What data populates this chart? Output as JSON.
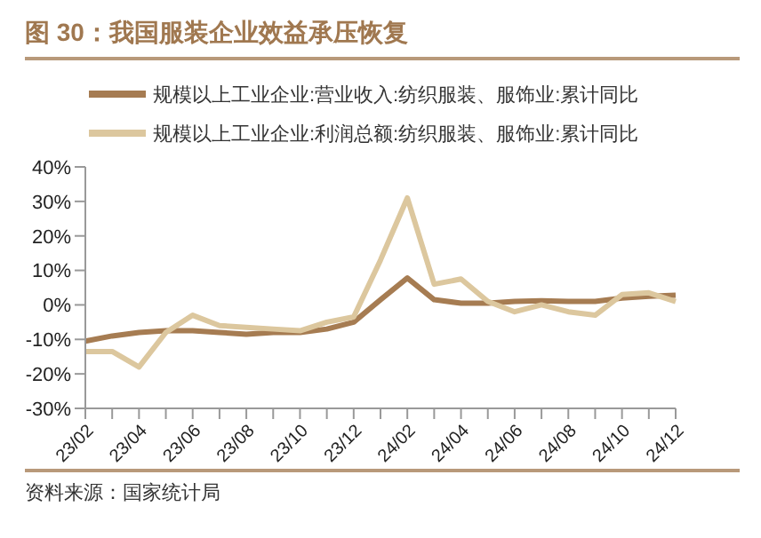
{
  "chart_data": {
    "type": "line",
    "title": "图 30：我国服装企业效益承压恢复",
    "categories": [
      "23/02",
      null,
      "23/04",
      null,
      "23/06",
      null,
      "23/08",
      null,
      "23/10",
      null,
      "23/12",
      null,
      "24/02",
      null,
      "24/04",
      null,
      "24/06",
      null,
      "24/08",
      null,
      "24/10",
      null,
      "24/12"
    ],
    "series": [
      {
        "name": "规模以上工业企业:营业收入:纺织服装、服饰业:累计同比",
        "color": "#a67c52",
        "values": [
          -10.5,
          -9,
          -8,
          -7.5,
          -7.5,
          -8,
          -8.5,
          -8,
          -8,
          -7,
          -5,
          1.5,
          7.8,
          1.5,
          0.5,
          0.5,
          1,
          1.2,
          1,
          1,
          2,
          2.5,
          2.8
        ]
      },
      {
        "name": "规模以上工业企业:利润总额:纺织服装、服饰业:累计同比",
        "color": "#dcc79e",
        "values": [
          -13.5,
          -13.5,
          -18,
          -8,
          -3,
          -6,
          -6.5,
          -7,
          -7.5,
          -5,
          -3.5,
          13,
          31,
          6,
          7.5,
          1,
          -2,
          0,
          -2,
          -3,
          3,
          3.5,
          1
        ]
      }
    ],
    "ylim": [
      -30,
      40
    ],
    "yticks": [
      {
        "value": -30,
        "label": "-30%"
      },
      {
        "value": -20,
        "label": "-20%"
      },
      {
        "value": -10,
        "label": "-10%"
      },
      {
        "value": 0,
        "label": "0%"
      },
      {
        "value": 10,
        "label": "10%"
      },
      {
        "value": 20,
        "label": "20%"
      },
      {
        "value": 30,
        "label": "30%"
      },
      {
        "value": 40,
        "label": "40%"
      }
    ],
    "grid": false,
    "legend": "top",
    "marker": "none",
    "line_style": "solid",
    "annotations": [
      "资料来源：国家统计局"
    ]
  }
}
